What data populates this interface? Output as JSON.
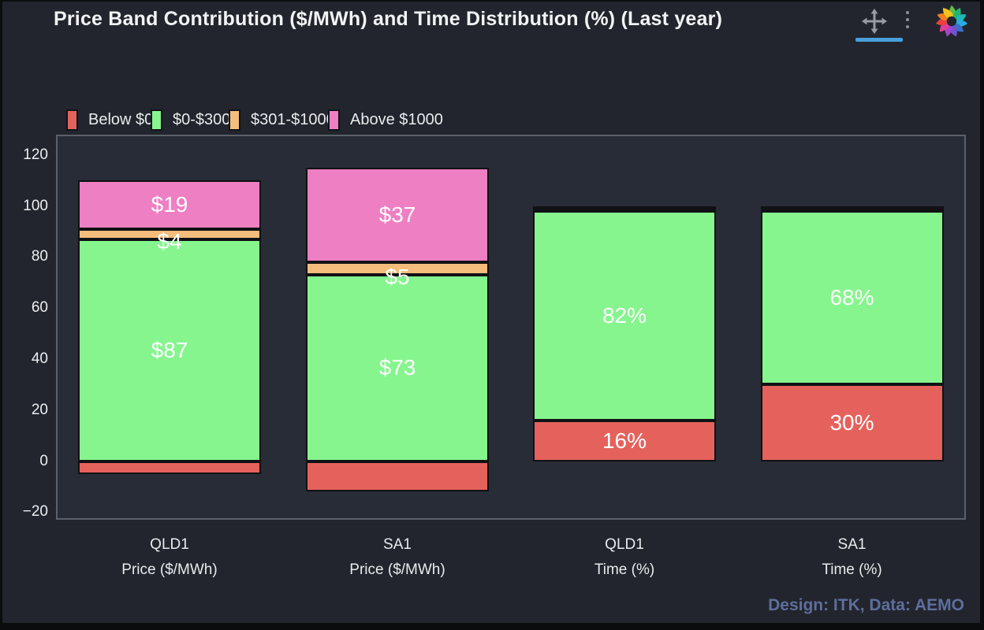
{
  "header": {
    "icons": {
      "move": "move-icon",
      "menu": "kebab-menu-icon",
      "logo": "plotly-logo-icon"
    }
  },
  "colors": {
    "page_background": "#0b0c0e",
    "card_background": "#22252d",
    "plot_background": "#282c37",
    "plot_border": "#5b606a",
    "accent_underline": "#4aa0dc",
    "attribution_text": "#5e6e9d",
    "bar_border": "#101114",
    "label_text": "#ffffff"
  },
  "chart_data": {
    "type": "bar",
    "stacked": true,
    "title": "Price Band Contribution ($/MWh) and Time Distribution (%) (Last year)",
    "attribution": "Design: ITK, Data: AEMO",
    "legend_position": "top",
    "grid": false,
    "ylim": [
      -23,
      128
    ],
    "yticks": [
      {
        "label": "120",
        "value": 120
      },
      {
        "label": "100",
        "value": 100
      },
      {
        "label": "80",
        "value": 80
      },
      {
        "label": "60",
        "value": 60
      },
      {
        "label": "40",
        "value": 40
      },
      {
        "label": "20",
        "value": 20
      },
      {
        "label": "0",
        "value": 0
      },
      {
        "label": "−20",
        "value": -20
      }
    ],
    "categories": [
      {
        "line1": "QLD1",
        "line2": "Price ($/MWh)"
      },
      {
        "line1": "SA1",
        "line2": "Price ($/MWh)"
      },
      {
        "line1": "QLD1",
        "line2": "Time (%)"
      },
      {
        "line1": "SA1",
        "line2": "Time (%)"
      }
    ],
    "series": [
      {
        "name": "Below $0",
        "color": "#e5625c",
        "values": [
          -5,
          -12,
          16,
          30
        ],
        "labels": [
          null,
          null,
          "16%",
          "30%"
        ]
      },
      {
        "name": "$0-$300",
        "color": "#86f58e",
        "values": [
          87,
          73,
          82,
          68
        ],
        "labels": [
          "$87",
          "$73",
          "82%",
          "68%"
        ]
      },
      {
        "name": "$301-$1000",
        "color": "#f5bd7b",
        "values": [
          4,
          5,
          1.5,
          1
        ],
        "labels": [
          "$4",
          "$5",
          null,
          null
        ]
      },
      {
        "name": "Above $1000",
        "color": "#ee7fc3",
        "values": [
          19,
          37,
          0.5,
          1
        ],
        "labels": [
          "$19",
          "$37",
          null,
          null
        ]
      }
    ]
  }
}
